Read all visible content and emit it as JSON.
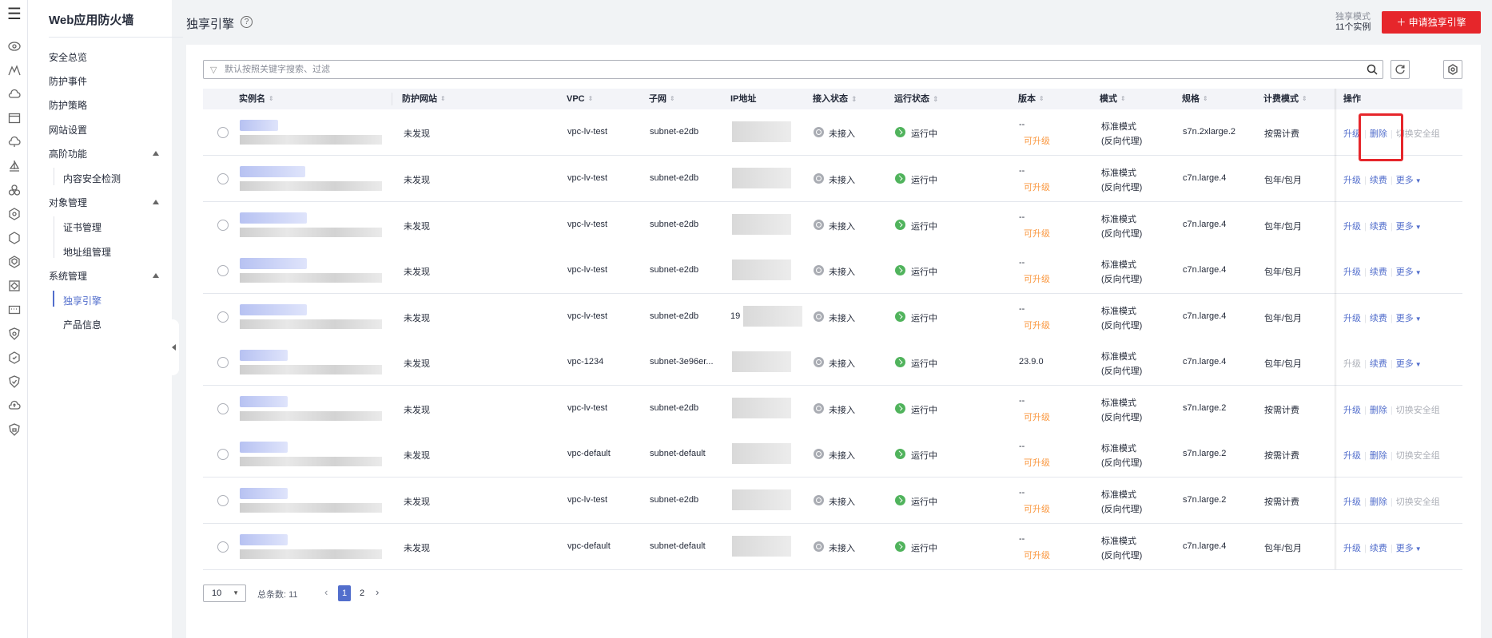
{
  "rail": {
    "menu_glyph": "☰",
    "icons": [
      "eye-icon",
      "mountain-icon",
      "cloud-icon",
      "browser-icon",
      "cloud-network-icon",
      "sail-icon",
      "cluster-icon",
      "hex-gear-icon",
      "hexagon-icon",
      "hexagon-shield-icon",
      "diamond-target-icon",
      "terminal-icon",
      "shield-icon",
      "hex-shield-icon",
      "shield-check-icon",
      "cloud-upload-icon",
      "shield-lock-icon"
    ]
  },
  "sidebar": {
    "title": "Web应用防火墙",
    "items": [
      {
        "label": "安全总览"
      },
      {
        "label": "防护事件"
      },
      {
        "label": "防护策略"
      },
      {
        "label": "网站设置"
      },
      {
        "label": "高阶功能"
      },
      {
        "label": "内容安全检测"
      },
      {
        "label": "对象管理"
      },
      {
        "label": "证书管理"
      },
      {
        "label": "地址组管理"
      },
      {
        "label": "系统管理"
      },
      {
        "label": "独享引擎"
      },
      {
        "label": "产品信息"
      }
    ]
  },
  "header": {
    "title": "独享引擎",
    "help": "?",
    "quota_label": "独享模式",
    "quota_count": "11个实例",
    "apply_button": "＋ 申请独享引擎"
  },
  "search": {
    "placeholder": "默认按照关键字搜索、过滤",
    "filter_glyph": "▽"
  },
  "table": {
    "headers": {
      "name": "实例名",
      "site": "防护网站",
      "vpc": "VPC",
      "subnet": "子网",
      "ip": "IP地址",
      "access": "接入状态",
      "run": "运行状态",
      "version": "版本",
      "mode": "模式",
      "spec": "规格",
      "billing": "计费模式",
      "ops": "操作"
    },
    "rows": [
      {
        "site": "未发现",
        "vpc": "vpc-lv-test",
        "subnet": "subnet-e2db",
        "ip_prefix": "",
        "access": "未接入",
        "run": "运行中",
        "version": "--",
        "version_upgrade": "可升级",
        "mode": "标准模式",
        "mode_sub": "(反向代理)",
        "spec": "s7n.2xlarge.2",
        "billing": "按需计费",
        "op1": "升级",
        "op2": "删除",
        "op3": "切换安全组",
        "op3_type": "disabled",
        "op1_enabled": true
      },
      {
        "site": "未发现",
        "vpc": "vpc-lv-test",
        "subnet": "subnet-e2db",
        "ip_prefix": "",
        "access": "未接入",
        "run": "运行中",
        "version": "--",
        "version_upgrade": "可升级",
        "mode": "标准模式",
        "mode_sub": "(反向代理)",
        "spec": "c7n.large.4",
        "billing": "包年/包月",
        "op1": "升级",
        "op2": "续费",
        "op3": "更多",
        "op3_type": "more",
        "op1_enabled": true
      },
      {
        "site": "未发现",
        "vpc": "vpc-lv-test",
        "subnet": "subnet-e2db",
        "ip_prefix": "",
        "access": "未接入",
        "run": "运行中",
        "version": "--",
        "version_upgrade": "可升级",
        "mode": "标准模式",
        "mode_sub": "(反向代理)",
        "spec": "c7n.large.4",
        "billing": "包年/包月",
        "op1": "升级",
        "op2": "续费",
        "op3": "更多",
        "op3_type": "more",
        "op1_enabled": true
      },
      {
        "site": "未发现",
        "vpc": "vpc-lv-test",
        "subnet": "subnet-e2db",
        "ip_prefix": "",
        "access": "未接入",
        "run": "运行中",
        "version": "--",
        "version_upgrade": "可升级",
        "mode": "标准模式",
        "mode_sub": "(反向代理)",
        "spec": "c7n.large.4",
        "billing": "包年/包月",
        "op1": "升级",
        "op2": "续费",
        "op3": "更多",
        "op3_type": "more",
        "op1_enabled": true
      },
      {
        "site": "未发现",
        "vpc": "vpc-lv-test",
        "subnet": "subnet-e2db",
        "ip_prefix": "19",
        "access": "未接入",
        "run": "运行中",
        "version": "--",
        "version_upgrade": "可升级",
        "mode": "标准模式",
        "mode_sub": "(反向代理)",
        "spec": "c7n.large.4",
        "billing": "包年/包月",
        "op1": "升级",
        "op2": "续费",
        "op3": "更多",
        "op3_type": "more",
        "op1_enabled": true
      },
      {
        "site": "未发现",
        "vpc": "vpc-1234",
        "subnet": "subnet-3e96er...",
        "ip_prefix": "",
        "access": "未接入",
        "run": "运行中",
        "version": "23.9.0",
        "version_upgrade": "",
        "mode": "标准模式",
        "mode_sub": "(反向代理)",
        "spec": "c7n.large.4",
        "billing": "包年/包月",
        "op1": "升级",
        "op2": "续费",
        "op3": "更多",
        "op3_type": "more",
        "op1_enabled": false
      },
      {
        "site": "未发现",
        "vpc": "vpc-lv-test",
        "subnet": "subnet-e2db",
        "ip_prefix": "",
        "access": "未接入",
        "run": "运行中",
        "version": "--",
        "version_upgrade": "可升级",
        "mode": "标准模式",
        "mode_sub": "(反向代理)",
        "spec": "s7n.large.2",
        "billing": "按需计费",
        "op1": "升级",
        "op2": "删除",
        "op3": "切换安全组",
        "op3_type": "disabled",
        "op1_enabled": true
      },
      {
        "site": "未发现",
        "vpc": "vpc-default",
        "subnet": "subnet-default",
        "ip_prefix": "",
        "access": "未接入",
        "run": "运行中",
        "version": "--",
        "version_upgrade": "可升级",
        "mode": "标准模式",
        "mode_sub": "(反向代理)",
        "spec": "s7n.large.2",
        "billing": "按需计费",
        "op1": "升级",
        "op2": "删除",
        "op3": "切换安全组",
        "op3_type": "disabled",
        "op1_enabled": true
      },
      {
        "site": "未发现",
        "vpc": "vpc-lv-test",
        "subnet": "subnet-e2db",
        "ip_prefix": "",
        "access": "未接入",
        "run": "运行中",
        "version": "--",
        "version_upgrade": "可升级",
        "mode": "标准模式",
        "mode_sub": "(反向代理)",
        "spec": "s7n.large.2",
        "billing": "按需计费",
        "op1": "升级",
        "op2": "删除",
        "op3": "切换安全组",
        "op3_type": "disabled",
        "op1_enabled": true
      },
      {
        "site": "未发现",
        "vpc": "vpc-default",
        "subnet": "subnet-default",
        "ip_prefix": "",
        "access": "未接入",
        "run": "运行中",
        "version": "--",
        "version_upgrade": "可升级",
        "mode": "标准模式",
        "mode_sub": "(反向代理)",
        "spec": "c7n.large.4",
        "billing": "包年/包月",
        "op1": "升级",
        "op2": "续费",
        "op3": "更多",
        "op3_type": "more",
        "op1_enabled": true
      }
    ]
  },
  "pager": {
    "page_size": "10",
    "total_label": "总条数:  11",
    "pages": [
      "1",
      "2"
    ],
    "current": "1",
    "prev": "‹",
    "next": "›"
  },
  "colors": {
    "accent": "#526ecc",
    "brand_red": "#e6262b",
    "upgrade_orange": "#fa9841",
    "running_green": "#50b35c"
  }
}
